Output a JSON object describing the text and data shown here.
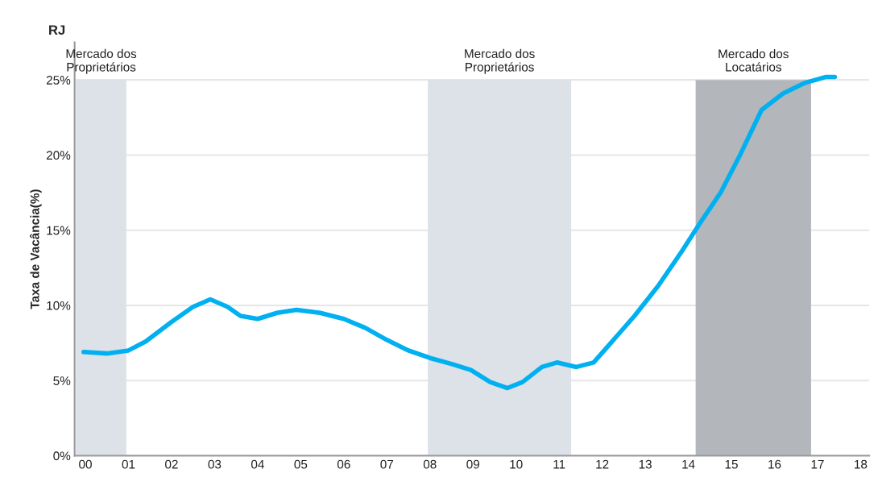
{
  "chart_data": {
    "type": "line",
    "ylabel": "Taxa de Vacância(%)",
    "annotations": [
      "RJ"
    ],
    "x": [
      -0.04,
      0.5,
      1.0,
      1.4,
      2.0,
      2.5,
      2.9,
      3.3,
      3.6,
      4.0,
      4.45,
      4.9,
      5.45,
      6.0,
      6.5,
      7.0,
      7.5,
      8.0,
      8.5,
      8.95,
      9.4,
      9.8,
      10.15,
      10.6,
      10.95,
      11.4,
      11.8,
      12.2,
      12.75,
      13.3,
      13.85,
      14.3,
      14.75,
      15.2,
      15.7,
      16.2,
      16.7,
      17.2,
      17.4
    ],
    "series": [
      {
        "color": "#00b0f0",
        "values": [
          6.9,
          6.8,
          7.0,
          7.6,
          8.9,
          9.9,
          10.4,
          9.9,
          9.3,
          9.1,
          9.5,
          9.7,
          9.5,
          9.1,
          8.5,
          7.7,
          7.0,
          6.5,
          6.1,
          5.7,
          4.9,
          4.5,
          4.9,
          5.9,
          6.2,
          5.9,
          6.2,
          7.5,
          9.3,
          11.3,
          13.6,
          15.6,
          17.5,
          20.0,
          23.0,
          24.1,
          24.8,
          25.2,
          25.2
        ]
      }
    ],
    "xlim": [
      -0.25,
      18.2
    ],
    "xticks": [
      {
        "value": 0,
        "label": "00"
      },
      {
        "value": 1,
        "label": "01"
      },
      {
        "value": 2,
        "label": "02"
      },
      {
        "value": 3,
        "label": "03"
      },
      {
        "value": 4,
        "label": "04"
      },
      {
        "value": 5,
        "label": "05"
      },
      {
        "value": 6,
        "label": "06"
      },
      {
        "value": 7,
        "label": "07"
      },
      {
        "value": 8,
        "label": "08"
      },
      {
        "value": 9,
        "label": "09"
      },
      {
        "value": 10,
        "label": "10"
      },
      {
        "value": 11,
        "label": "11"
      },
      {
        "value": 12,
        "label": "12"
      },
      {
        "value": 13,
        "label": "13"
      },
      {
        "value": 14,
        "label": "14"
      },
      {
        "value": 15,
        "label": "15"
      },
      {
        "value": 16,
        "label": "16"
      },
      {
        "value": 17,
        "label": "17"
      },
      {
        "value": 18,
        "label": "18"
      }
    ],
    "ylim": [
      0,
      27.5
    ],
    "yticks": [
      {
        "value": 0,
        "label": "0%"
      },
      {
        "value": 5,
        "label": "5%"
      },
      {
        "value": 10,
        "label": "10%"
      },
      {
        "value": 15,
        "label": "15%"
      },
      {
        "value": 20,
        "label": "20%"
      },
      {
        "value": 25,
        "label": "25%"
      }
    ],
    "bands": [
      {
        "axis": "x",
        "from": -0.22,
        "to": 0.95,
        "label": "Mercado dos\nProprietários",
        "color": "#dde1e8"
      },
      {
        "axis": "x",
        "from": 7.95,
        "to": 11.28,
        "label": "Mercado dos\nProprietários",
        "color": "#dde1e8"
      },
      {
        "axis": "x",
        "from": 14.17,
        "to": 16.85,
        "label": "Mercado dos\nLocatários",
        "color": "#b3b7bb"
      }
    ],
    "grid": "y",
    "line_style": "solid",
    "marker": "none"
  }
}
